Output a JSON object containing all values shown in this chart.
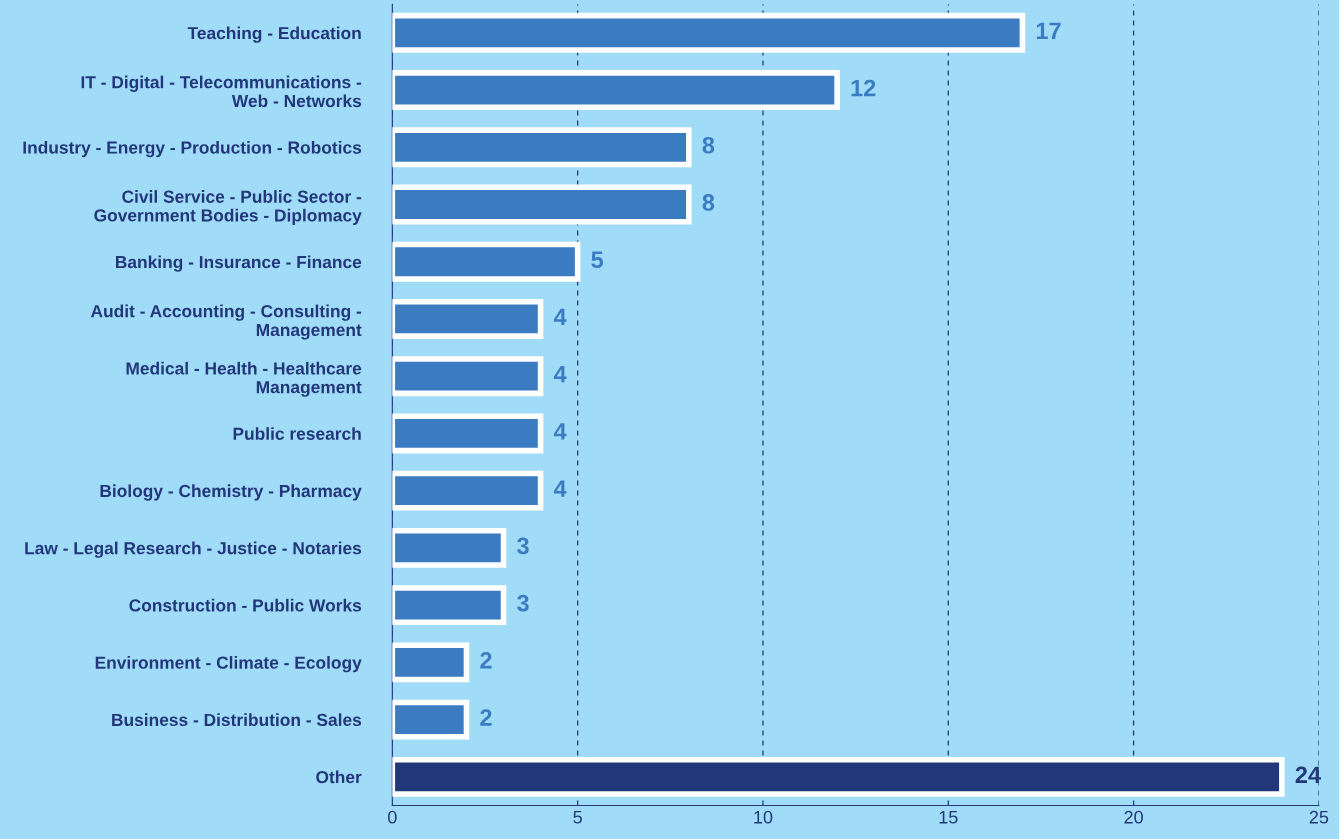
{
  "chart_data": {
    "type": "bar",
    "orientation": "horizontal",
    "categories": [
      "Teaching - Education",
      "IT - Digital - Telecommunications -\nWeb - Networks",
      "Industry - Energy - Production - Robotics",
      "Civil Service - Public Sector -\nGovernment Bodies - Diplomacy",
      "Banking - Insurance - Finance",
      "Audit - Accounting - Consulting -\nManagement",
      "Medical - Health - Healthcare\nManagement",
      "Public research",
      "Biology - Chemistry - Pharmacy",
      "Law - Legal Research - Justice - Notaries",
      "Construction - Public Works",
      "Environment - Climate - Ecology",
      "Business - Distribution - Sales",
      "Other"
    ],
    "values": [
      17,
      12,
      8,
      8,
      5,
      4,
      4,
      4,
      4,
      3,
      3,
      2,
      2,
      24
    ],
    "colors": [
      "#3a7bc2",
      "#3a7bc2",
      "#3a7bc2",
      "#3a7bc2",
      "#3a7bc2",
      "#3a7bc2",
      "#3a7bc2",
      "#3a7bc2",
      "#3a7bc2",
      "#3a7bc2",
      "#3a7bc2",
      "#3a7bc2",
      "#3a7bc2",
      "#22367a"
    ],
    "xlim": [
      0,
      25
    ],
    "xticks": [
      0,
      5,
      10,
      15,
      20,
      25
    ],
    "grid": "x",
    "data_labels": true
  }
}
